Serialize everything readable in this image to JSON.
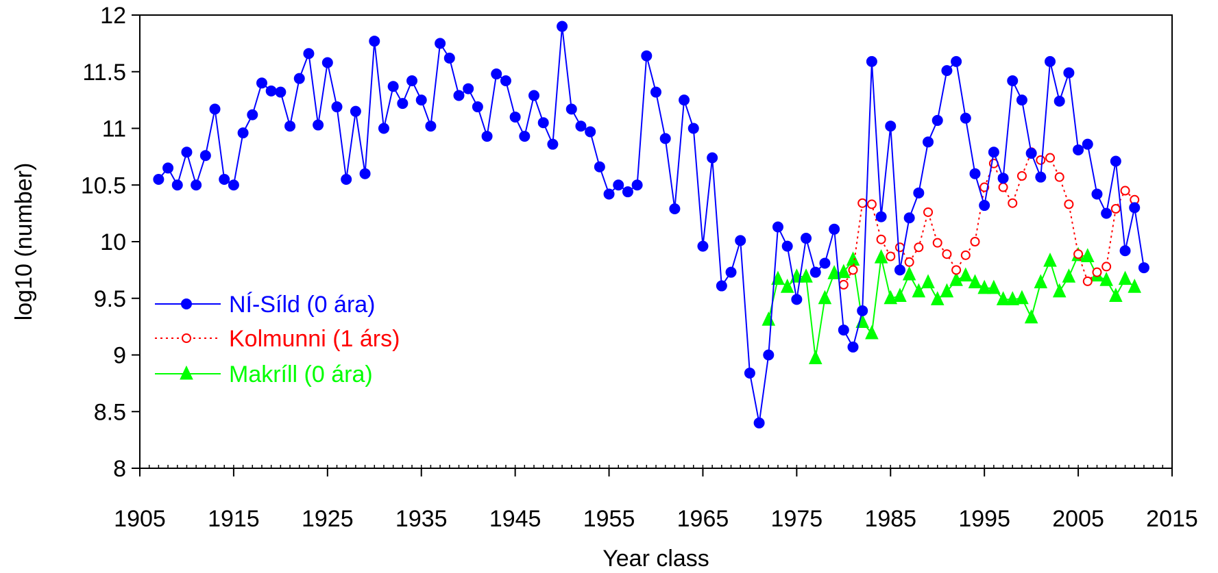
{
  "chart_data": {
    "type": "line",
    "title": "",
    "xlabel": "Year class",
    "ylabel": "log10 (number)",
    "xlim": [
      1905,
      2015
    ],
    "ylim": [
      8,
      12
    ],
    "x_ticks": [
      "1905",
      "1915",
      "1925",
      "1935",
      "1945",
      "1955",
      "1965",
      "1975",
      "1985",
      "1995",
      "2005",
      "2015"
    ],
    "y_ticks": [
      "8",
      "8.5",
      "9",
      "9.5",
      "10",
      "10.5",
      "11",
      "11.5",
      "12"
    ],
    "grid": false,
    "legend_position": "bottom-left",
    "series": [
      {
        "name": "NÍ-Síld (0 ára)",
        "color": "#0000ff",
        "marker": "filled-circle",
        "line": "solid",
        "x": [
          1907,
          1908,
          1909,
          1910,
          1911,
          1912,
          1913,
          1914,
          1915,
          1916,
          1917,
          1918,
          1919,
          1920,
          1921,
          1922,
          1923,
          1924,
          1925,
          1926,
          1927,
          1928,
          1929,
          1930,
          1931,
          1932,
          1933,
          1934,
          1935,
          1936,
          1937,
          1938,
          1939,
          1940,
          1941,
          1942,
          1943,
          1944,
          1945,
          1946,
          1947,
          1948,
          1949,
          1950,
          1951,
          1952,
          1953,
          1954,
          1955,
          1956,
          1957,
          1958,
          1959,
          1960,
          1961,
          1962,
          1963,
          1964,
          1965,
          1966,
          1967,
          1968,
          1969,
          1970,
          1971,
          1972,
          1973,
          1974,
          1975,
          1976,
          1977,
          1978,
          1979,
          1980,
          1981,
          1982,
          1983,
          1984,
          1985,
          1986,
          1987,
          1988,
          1989,
          1990,
          1991,
          1992,
          1993,
          1994,
          1995,
          1996,
          1997,
          1998,
          1999,
          2000,
          2001,
          2002,
          2003,
          2004,
          2005,
          2006,
          2007,
          2008,
          2009,
          2010,
          2011,
          2012
        ],
        "y": [
          10.55,
          10.65,
          10.5,
          10.79,
          10.5,
          10.76,
          11.17,
          10.55,
          10.5,
          10.96,
          11.12,
          11.4,
          11.33,
          11.32,
          11.02,
          11.44,
          11.66,
          11.03,
          11.58,
          11.19,
          10.55,
          11.15,
          10.6,
          11.77,
          11.0,
          11.37,
          11.22,
          11.42,
          11.25,
          11.02,
          11.75,
          11.62,
          11.29,
          11.35,
          11.19,
          10.93,
          11.48,
          11.42,
          11.1,
          10.93,
          11.29,
          11.05,
          10.86,
          11.9,
          11.17,
          11.02,
          10.97,
          10.66,
          10.42,
          10.5,
          10.44,
          10.5,
          11.64,
          11.32,
          10.91,
          10.29,
          11.25,
          11.0,
          9.96,
          10.74,
          9.61,
          9.73,
          10.01,
          8.84,
          8.4,
          9.0,
          10.13,
          9.96,
          9.49,
          10.03,
          9.73,
          9.81,
          10.11,
          9.22,
          9.07,
          9.39,
          11.59,
          10.22,
          11.02,
          9.75,
          10.21,
          10.43,
          10.88,
          11.07,
          11.51,
          11.59,
          11.09,
          10.6,
          10.32,
          10.79,
          10.56,
          11.42,
          11.25,
          10.78,
          10.57,
          11.59,
          11.24,
          11.49,
          10.81,
          10.86,
          10.42,
          10.25,
          10.71,
          9.92,
          10.3,
          9.77
        ]
      },
      {
        "name": "Kolmunni (1 árs)",
        "color": "#ff0000",
        "marker": "open-circle",
        "line": "dotted",
        "x": [
          1980,
          1981,
          1982,
          1983,
          1984,
          1985,
          1986,
          1987,
          1988,
          1989,
          1990,
          1991,
          1992,
          1993,
          1994,
          1995,
          1996,
          1997,
          1998,
          1999,
          2000,
          2001,
          2002,
          2003,
          2004,
          2005,
          2006,
          2007,
          2008,
          2009,
          2010,
          2011
        ],
        "y": [
          9.62,
          9.75,
          10.34,
          10.33,
          10.02,
          9.87,
          9.95,
          9.82,
          9.95,
          10.26,
          9.99,
          9.89,
          9.75,
          9.88,
          10.0,
          10.48,
          10.69,
          10.48,
          10.34,
          10.58,
          10.79,
          10.72,
          10.74,
          10.57,
          10.33,
          9.89,
          9.65,
          9.73,
          9.78,
          10.29,
          10.45,
          10.37
        ]
      },
      {
        "name": "Makríll (0 ára)",
        "color": "#00ff00",
        "marker": "filled-triangle",
        "line": "solid",
        "x": [
          1972,
          1973,
          1974,
          1975,
          1976,
          1977,
          1978,
          1979,
          1980,
          1981,
          1982,
          1983,
          1984,
          1985,
          1986,
          1987,
          1988,
          1989,
          1990,
          1991,
          1992,
          1993,
          1994,
          1995,
          1996,
          1997,
          1998,
          1999,
          2000,
          2001,
          2002,
          2003,
          2004,
          2005,
          2006,
          2007,
          2008,
          2009,
          2010,
          2011
        ],
        "y": [
          9.31,
          9.67,
          9.6,
          9.69,
          9.69,
          8.97,
          9.5,
          9.72,
          9.73,
          9.84,
          9.29,
          9.19,
          9.86,
          9.5,
          9.52,
          9.71,
          9.56,
          9.64,
          9.49,
          9.56,
          9.66,
          9.7,
          9.64,
          9.59,
          9.59,
          9.49,
          9.49,
          9.5,
          9.33,
          9.64,
          9.83,
          9.56,
          9.69,
          9.88,
          9.87,
          9.7,
          9.66,
          9.52,
          9.67,
          9.6
        ]
      }
    ]
  }
}
